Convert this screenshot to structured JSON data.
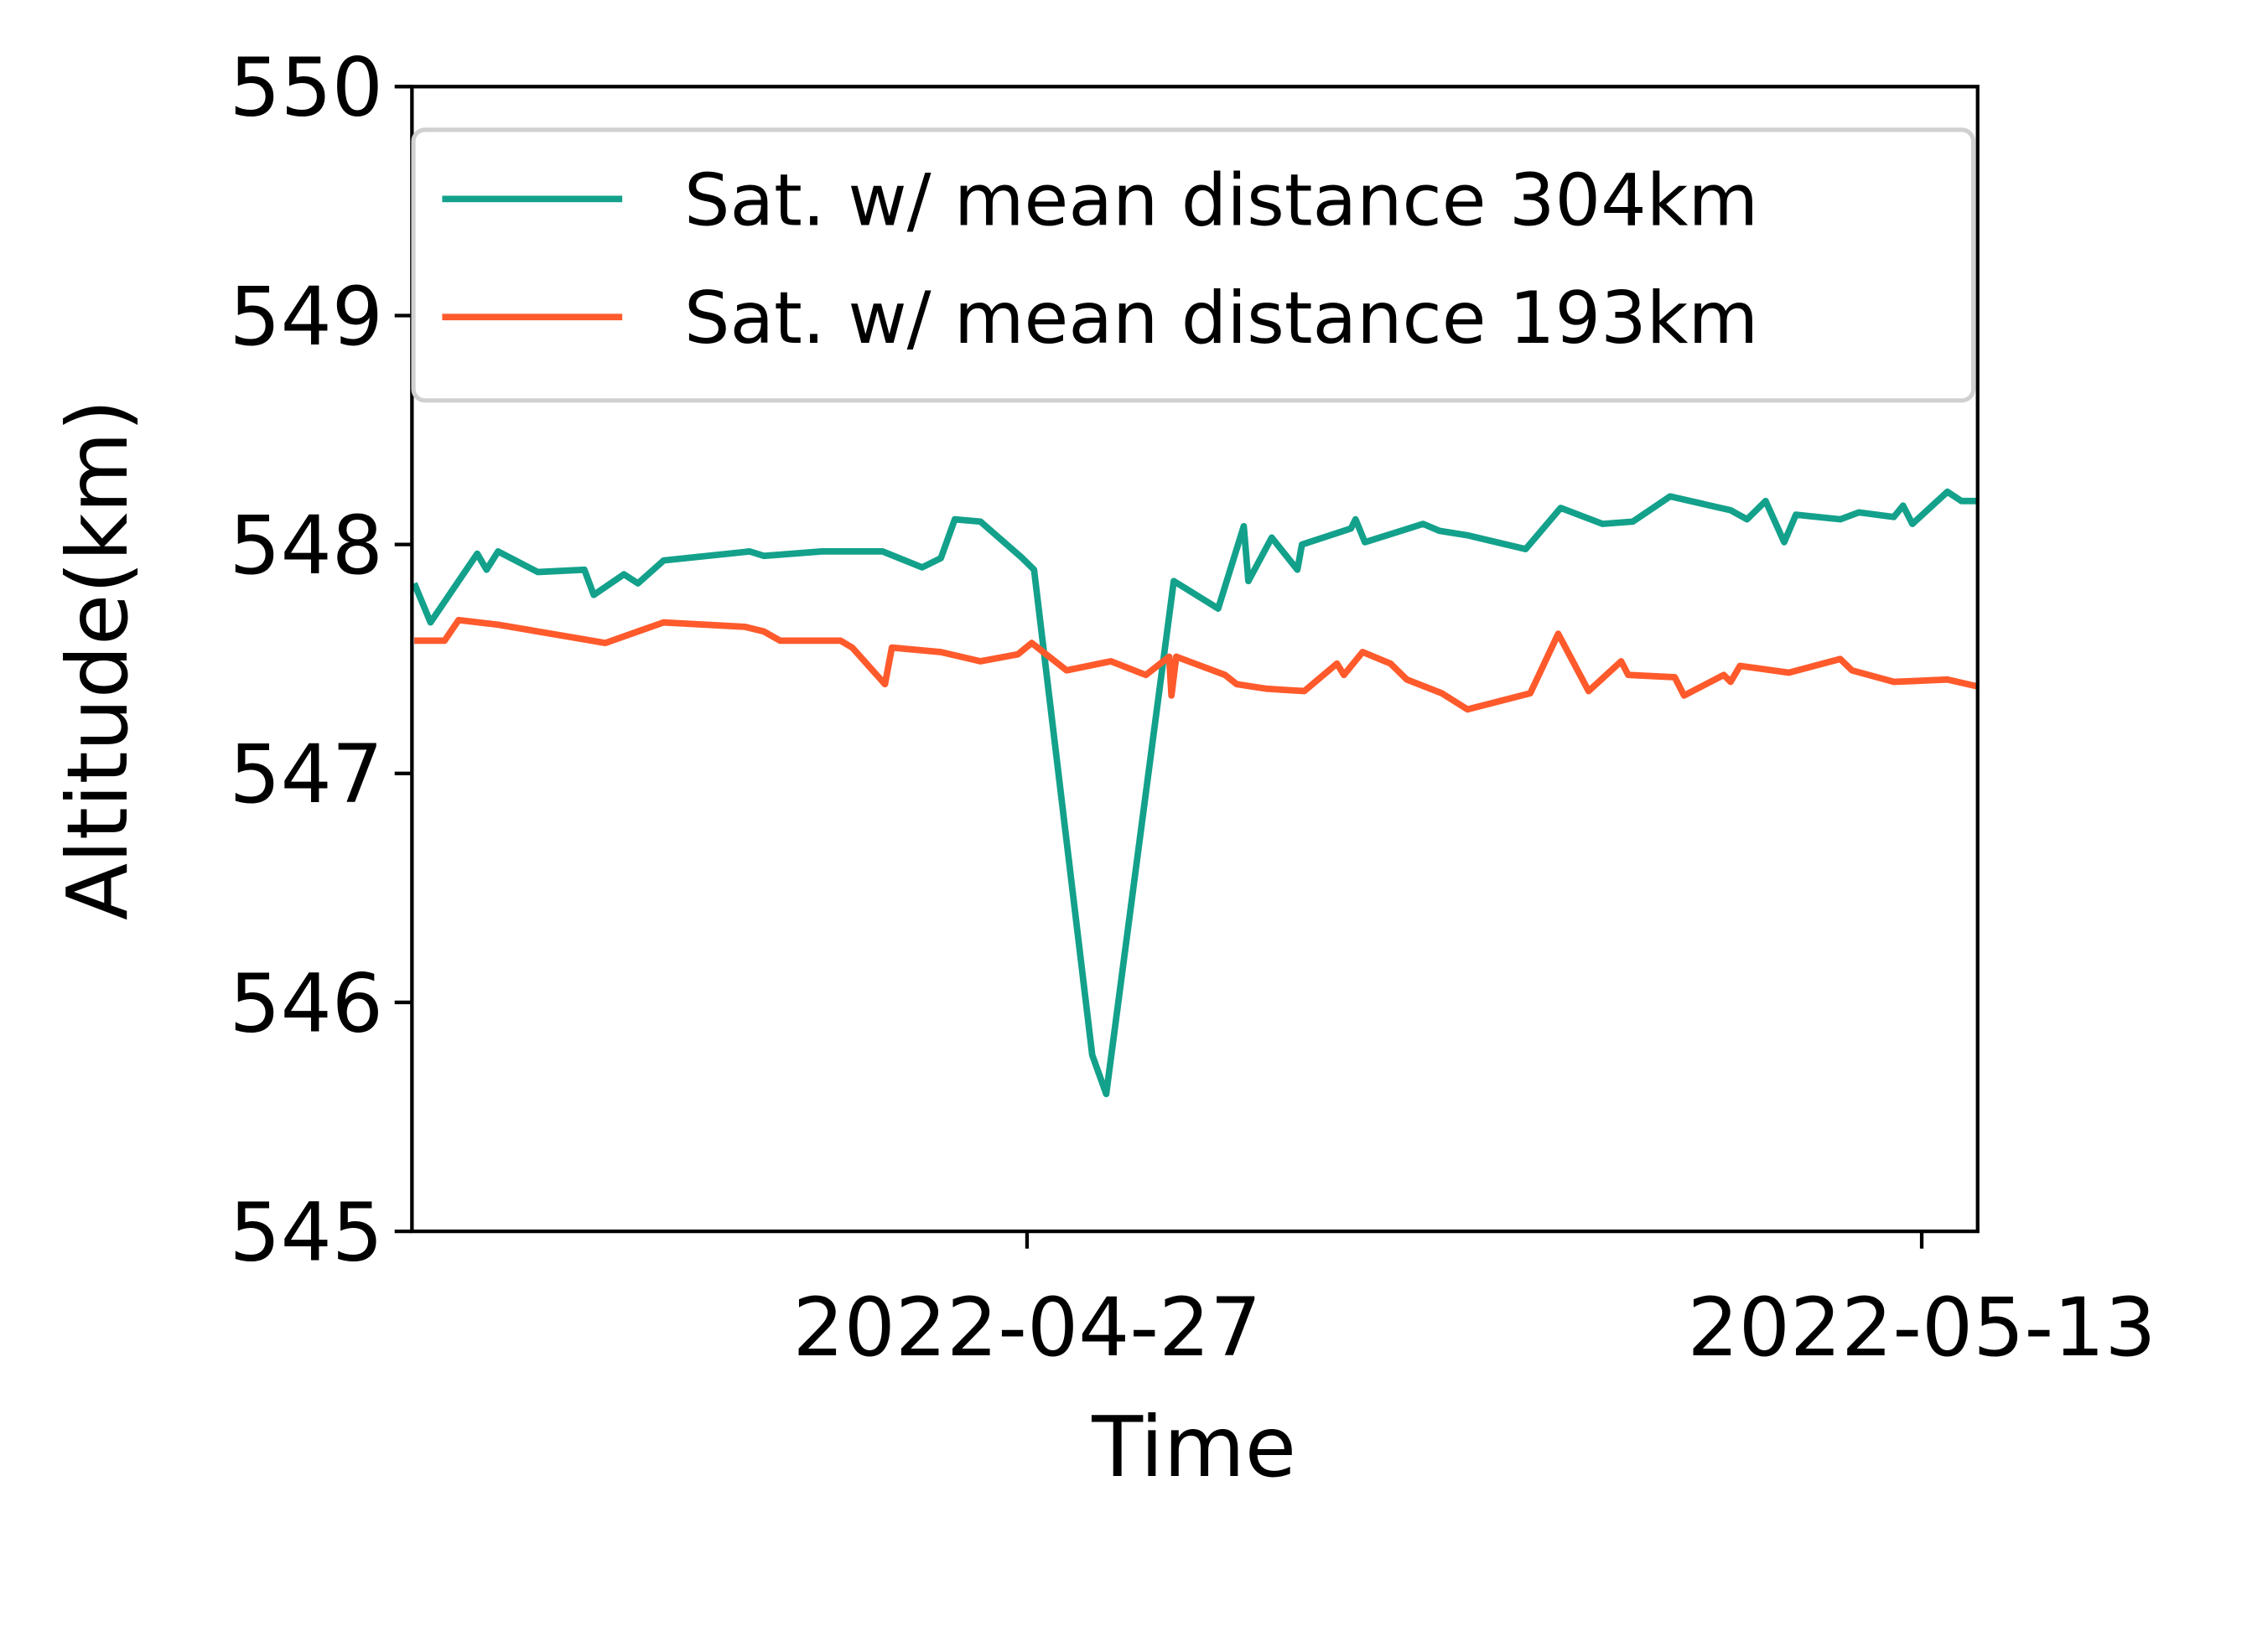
{
  "chart_data": {
    "type": "line",
    "x_label": "Time",
    "y_label": "Altitude(km)",
    "xlim": [
      "2022-04-16",
      "2022-05-14"
    ],
    "xticks": [
      "2022-04-27",
      "2022-05-13"
    ],
    "ylim": [
      545,
      550
    ],
    "yticks": [
      545,
      546,
      547,
      548,
      549,
      550
    ],
    "legend": "upper-right",
    "series": [
      {
        "name": "Sat. w/ mean distance 304km",
        "color": "#13a18b",
        "x": [
          "2022-04-16T01:00",
          "2022-04-16T08:00",
          "2022-04-17T04:00",
          "2022-04-17T08:00",
          "2022-04-17T13:00",
          "2022-04-18T06:00",
          "2022-04-19T02:00",
          "2022-04-19T06:00",
          "2022-04-19T19:00",
          "2022-04-20T01:00",
          "2022-04-20T12:00",
          "2022-04-22T01:00",
          "2022-04-22T07:00",
          "2022-04-23T08:00",
          "2022-04-24T10:00",
          "2022-04-25T03:00",
          "2022-04-25T11:00",
          "2022-04-25T17:00",
          "2022-04-26T04:00",
          "2022-04-26T22:00",
          "2022-04-27T03:00",
          "2022-04-28T04:00",
          "2022-04-28T10:00",
          "2022-04-29T15:00",
          "2022-04-30T10:00",
          "2022-04-30T21:00",
          "2022-04-30T23:00",
          "2022-05-01T09:00",
          "2022-05-01T20:00",
          "2022-05-01T22:00",
          "2022-05-02T19:00",
          "2022-05-02T21:00",
          "2022-05-03T01:00",
          "2022-05-04T02:00",
          "2022-05-04T09:00",
          "2022-05-04T21:00",
          "2022-05-05T22:00",
          "2022-05-06T13:00",
          "2022-05-07T07:00",
          "2022-05-07T20:00",
          "2022-05-08T12:00",
          "2022-05-09T14:00",
          "2022-05-09T21:00",
          "2022-05-10T05:00",
          "2022-05-10T13:00",
          "2022-05-10T18:00",
          "2022-05-11T13:00",
          "2022-05-11T21:00",
          "2022-05-12T12:00",
          "2022-05-12T16:00",
          "2022-05-12T20:00",
          "2022-05-13T11:00",
          "2022-05-13T17:00",
          "2022-05-14T00:00"
        ],
        "values": [
          547.83,
          547.66,
          547.96,
          547.89,
          547.97,
          547.88,
          547.89,
          547.78,
          547.87,
          547.83,
          547.93,
          547.97,
          547.95,
          547.97,
          547.97,
          547.9,
          547.94,
          548.11,
          548.1,
          547.94,
          547.89,
          545.77,
          545.6,
          547.84,
          547.72,
          548.08,
          547.84,
          548.03,
          547.89,
          548.0,
          548.07,
          548.11,
          548.01,
          548.09,
          548.06,
          548.04,
          547.98,
          548.16,
          548.09,
          548.1,
          548.21,
          548.15,
          548.11,
          548.19,
          548.01,
          548.13,
          548.11,
          548.14,
          548.12,
          548.17,
          548.09,
          548.23,
          548.19,
          548.19
        ]
      },
      {
        "name": "Sat. w/ mean distance 193km",
        "color": "#ff5a2c",
        "x": [
          "2022-04-16T01:00",
          "2022-04-16T14:00",
          "2022-04-16T20:00",
          "2022-04-17T13:00",
          "2022-04-19T11:00",
          "2022-04-20T12:00",
          "2022-04-21T23:00",
          "2022-04-22T07:00",
          "2022-04-22T14:00",
          "2022-04-23T16:00",
          "2022-04-23T21:00",
          "2022-04-24T11:00",
          "2022-04-24T14:00",
          "2022-04-25T11:00",
          "2022-04-26T04:00",
          "2022-04-26T20:00",
          "2022-04-27T02:00",
          "2022-04-27T17:00",
          "2022-04-28T12:00",
          "2022-04-29T03:00",
          "2022-04-29T13:00",
          "2022-04-29T14:00",
          "2022-04-29T16:00",
          "2022-04-30T13:00",
          "2022-04-30T18:00",
          "2022-05-01T07:00",
          "2022-05-01T23:00",
          "2022-05-02T13:00",
          "2022-05-02T16:00",
          "2022-05-03T00:00",
          "2022-05-03T12:00",
          "2022-05-03T19:00",
          "2022-05-04T10:00",
          "2022-05-04T21:00",
          "2022-05-06T00:00",
          "2022-05-06T12:00",
          "2022-05-07T01:00",
          "2022-05-07T15:00",
          "2022-05-07T18:00",
          "2022-05-08T14:00",
          "2022-05-08T18:00",
          "2022-05-09T11:00",
          "2022-05-09T14:00",
          "2022-05-09T18:00",
          "2022-05-10T15:00",
          "2022-05-11T13:00",
          "2022-05-11T18:00",
          "2022-05-12T12:00",
          "2022-05-13T11:00",
          "2022-05-14T00:00"
        ],
        "values": [
          547.58,
          547.58,
          547.67,
          547.65,
          547.57,
          547.66,
          547.64,
          547.62,
          547.58,
          547.58,
          547.55,
          547.39,
          547.55,
          547.53,
          547.49,
          547.52,
          547.57,
          547.45,
          547.49,
          547.43,
          547.51,
          547.34,
          547.51,
          547.43,
          547.39,
          547.37,
          547.36,
          547.48,
          547.43,
          547.53,
          547.48,
          547.41,
          547.35,
          547.28,
          547.35,
          547.61,
          547.36,
          547.49,
          547.43,
          547.42,
          547.34,
          547.43,
          547.4,
          547.47,
          547.44,
          547.5,
          547.45,
          547.4,
          547.41,
          547.38
        ]
      }
    ]
  }
}
